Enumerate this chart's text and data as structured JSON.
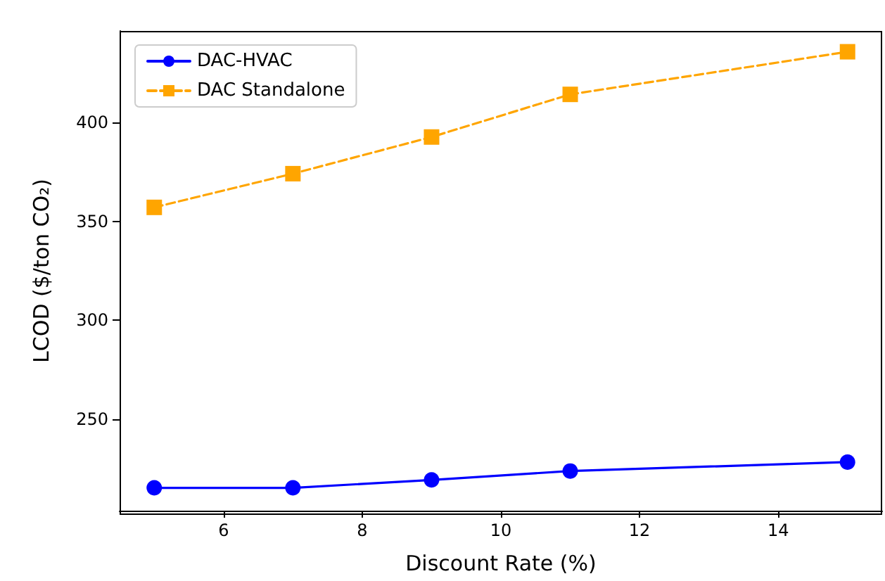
{
  "chart_data": {
    "type": "line",
    "xlabel": "Discount Rate (%)",
    "ylabel": "LCOD ($/ton CO₂)",
    "x": [
      5,
      7,
      9,
      11,
      15
    ],
    "series": [
      {
        "name": "DAC-HVAC",
        "color": "#0000ff",
        "values": [
          215.5,
          215.5,
          219.5,
          224,
          228.5
        ],
        "marker": "circle",
        "line_style": "solid"
      },
      {
        "name": "DAC Standalone",
        "color": "#ffa500",
        "values": [
          357,
          374,
          392.5,
          414,
          435.5
        ],
        "marker": "square",
        "line_style": "dashed"
      }
    ],
    "xlim": [
      4.5,
      15.5
    ],
    "xticks": [
      6,
      8,
      10,
      12,
      14
    ],
    "ylim": [
      204,
      446
    ],
    "yticks": [
      250,
      300,
      350,
      400
    ],
    "grid": false,
    "legend": "top left"
  }
}
